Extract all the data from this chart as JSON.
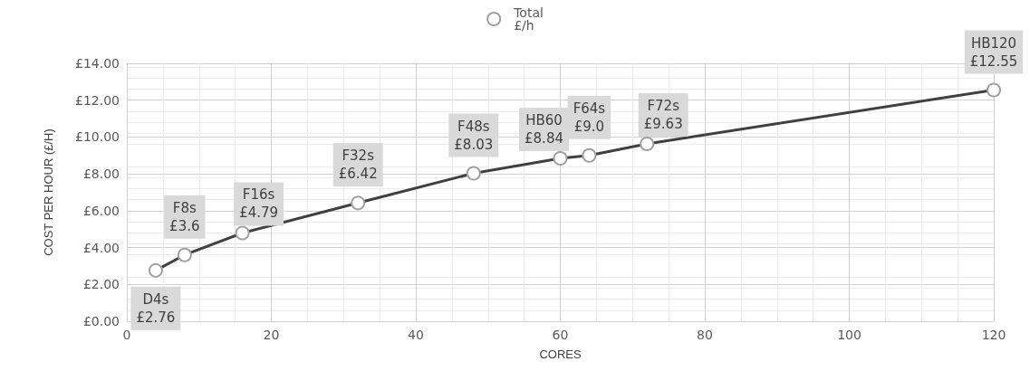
{
  "chart_data": {
    "type": "line",
    "xlabel": "CORES",
    "ylabel": "COST PER HOUR (£/H)",
    "x": [
      4,
      8,
      16,
      32,
      48,
      60,
      64,
      72,
      120
    ],
    "series": [
      {
        "name": "Total\n£/h",
        "color": "#404040",
        "values": [
          2.76,
          3.6,
          4.79,
          6.42,
          8.03,
          8.84,
          9.0,
          9.63,
          12.55
        ],
        "value_labels": [
          "D4s\n£2.76",
          "F8s\n£3.6",
          "F16s\n£4.79",
          "F32s\n£6.42",
          "F48s\n£8.03",
          "HB60\n£8.84",
          "F64s\n£9.0",
          "F72s\n£9.63",
          "HB120\n£12.55"
        ]
      }
    ],
    "xlim": [
      0,
      120
    ],
    "xticks": [
      0,
      20,
      40,
      60,
      80,
      100,
      120
    ],
    "ylim": [
      0,
      14
    ],
    "yticks": [
      {
        "value": 0,
        "label": "£0.00"
      },
      {
        "value": 2,
        "label": "£2.00"
      },
      {
        "value": 4,
        "label": "£4.00"
      },
      {
        "value": 6,
        "label": "£6.00"
      },
      {
        "value": 8,
        "label": "£8.00"
      },
      {
        "value": 10,
        "label": "£10.00"
      },
      {
        "value": 12,
        "label": "£12.00"
      },
      {
        "value": 14,
        "label": "£14.00"
      }
    ],
    "grid": true,
    "legend": "top",
    "marker": "circle",
    "line_style": "solid"
  }
}
